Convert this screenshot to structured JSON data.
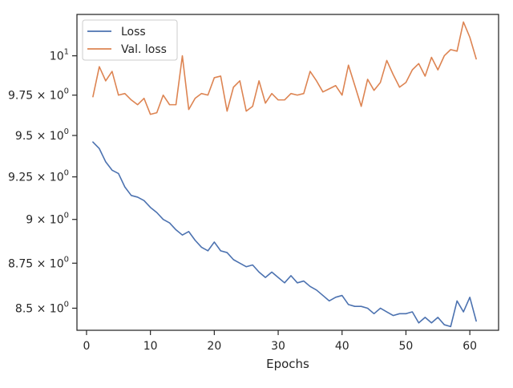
{
  "chart_data": {
    "type": "line",
    "title": "",
    "xlabel": "Epochs",
    "ylabel": "",
    "y_scale": "log",
    "xlim": [
      -1.5,
      64.5
    ],
    "ylim": [
      8.38,
      10.27
    ],
    "grid": false,
    "legend_position": "top-left",
    "x_ticks": [
      0,
      10,
      20,
      30,
      40,
      50,
      60
    ],
    "x_tick_labels": [
      "0",
      "10",
      "20",
      "30",
      "40",
      "50",
      "60"
    ],
    "y_ticks": [
      8.5,
      8.75,
      9.0,
      9.25,
      9.5,
      9.75,
      10.0
    ],
    "y_tick_labels": [
      {
        "base": "8.5 × 10",
        "exp": "0"
      },
      {
        "base": "8.75 × 10",
        "exp": "0"
      },
      {
        "base": "9 × 10",
        "exp": "0"
      },
      {
        "base": "9.25 × 10",
        "exp": "0"
      },
      {
        "base": "9.5 × 10",
        "exp": "0"
      },
      {
        "base": "9.75 × 10",
        "exp": "0"
      },
      {
        "base": "10",
        "exp": "1"
      }
    ],
    "x": [
      1,
      2,
      3,
      4,
      5,
      6,
      7,
      8,
      9,
      10,
      11,
      12,
      13,
      14,
      15,
      16,
      17,
      18,
      19,
      20,
      21,
      22,
      23,
      24,
      25,
      26,
      27,
      28,
      29,
      30,
      31,
      32,
      33,
      34,
      35,
      36,
      37,
      38,
      39,
      40,
      41,
      42,
      43,
      44,
      45,
      46,
      47,
      48,
      49,
      50,
      51,
      52,
      53,
      54,
      55,
      56,
      57,
      58,
      59,
      60,
      61
    ],
    "series": [
      {
        "name": "Loss",
        "color": "#4c72b0",
        "values": [
          9.46,
          9.42,
          9.34,
          9.29,
          9.27,
          9.19,
          9.14,
          9.13,
          9.11,
          9.07,
          9.04,
          9.0,
          8.98,
          8.94,
          8.91,
          8.93,
          8.88,
          8.84,
          8.82,
          8.87,
          8.82,
          8.81,
          8.77,
          8.75,
          8.73,
          8.74,
          8.7,
          8.67,
          8.7,
          8.67,
          8.64,
          8.68,
          8.64,
          8.65,
          8.62,
          8.6,
          8.57,
          8.54,
          8.56,
          8.57,
          8.52,
          8.51,
          8.51,
          8.5,
          8.47,
          8.5,
          8.48,
          8.46,
          8.47,
          8.47,
          8.48,
          8.42,
          8.45,
          8.42,
          8.45,
          8.41,
          8.4,
          8.54,
          8.48,
          8.56,
          8.43
        ]
      },
      {
        "name": "Val. loss",
        "color": "#dd8452",
        "values": [
          9.74,
          9.93,
          9.84,
          9.9,
          9.75,
          9.76,
          9.72,
          9.69,
          9.73,
          9.63,
          9.64,
          9.75,
          9.69,
          9.69,
          10.0,
          9.66,
          9.73,
          9.76,
          9.75,
          9.86,
          9.87,
          9.65,
          9.8,
          9.84,
          9.65,
          9.68,
          9.84,
          9.7,
          9.76,
          9.72,
          9.72,
          9.76,
          9.75,
          9.76,
          9.9,
          9.84,
          9.77,
          9.79,
          9.81,
          9.75,
          9.94,
          9.81,
          9.68,
          9.85,
          9.78,
          9.83,
          9.97,
          9.88,
          9.8,
          9.83,
          9.91,
          9.95,
          9.87,
          9.99,
          9.91,
          10.0,
          10.04,
          10.03,
          10.22,
          10.12,
          9.98
        ]
      }
    ]
  }
}
